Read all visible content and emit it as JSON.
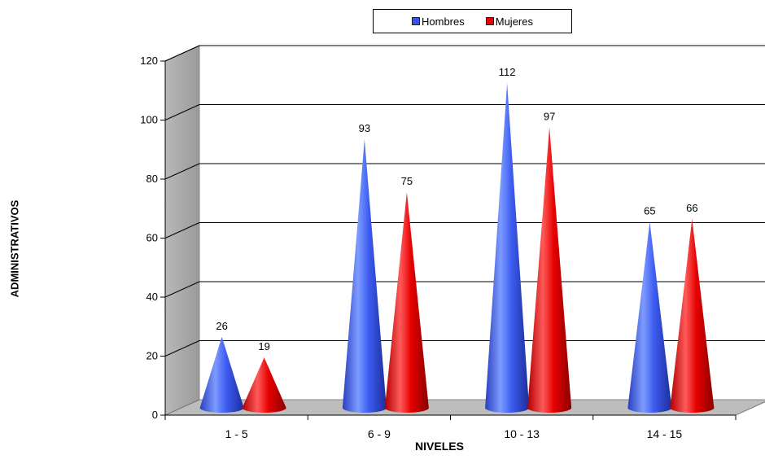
{
  "legend": {
    "items": [
      {
        "label": "Hombres",
        "color": "#3355ee"
      },
      {
        "label": "Mujeres",
        "color": "#ee0000"
      }
    ]
  },
  "chart_data": {
    "type": "bar",
    "subtype": "3d-cone",
    "categories": [
      "1 - 5",
      "6 - 9",
      "10 - 13",
      "14 - 15"
    ],
    "series": [
      {
        "name": "Hombres",
        "values": [
          26,
          93,
          112,
          65
        ],
        "color": "#3355ee"
      },
      {
        "name": "Mujeres",
        "values": [
          19,
          75,
          97,
          66
        ],
        "color": "#ee0000"
      }
    ],
    "xlabel": "NIVELES",
    "ylabel": "ADMINISTRATIVOS",
    "ylim": [
      0,
      120
    ],
    "yticks": [
      0,
      20,
      40,
      60,
      80,
      100,
      120
    ],
    "grid": true,
    "legend_position": "top"
  }
}
